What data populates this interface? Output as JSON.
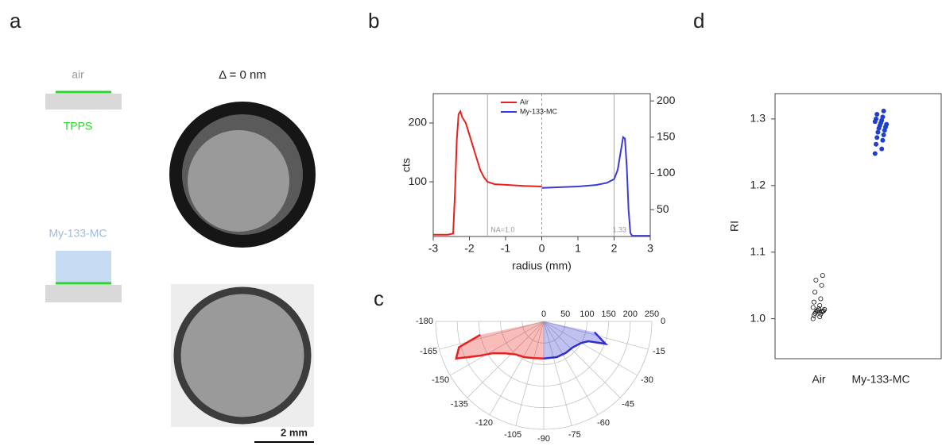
{
  "panel_labels": [
    "a",
    "b",
    "c",
    "d"
  ],
  "schematic": {
    "top_label": "air",
    "top_substrate": "TPPS",
    "bottom_label": "My-133-MC"
  },
  "image_title": "Δ = 0 nm",
  "scale_bar": "2 mm",
  "chart_data": [
    {
      "type": "line",
      "xlabel": "radius (mm)",
      "ylabel": "cts",
      "xlim": [
        -3,
        3
      ],
      "xticks": [
        -3,
        -2,
        -1,
        0,
        1,
        2,
        3
      ],
      "ylim": [
        7,
        250
      ],
      "yticks": [
        100,
        200
      ],
      "y2lim": [
        13,
        210
      ],
      "y2ticks": [
        50,
        100,
        150,
        200
      ],
      "series": [
        {
          "name": "Air",
          "color": "#e8201e",
          "x": [
            -3,
            -2.6,
            -2.45,
            -2.4,
            -2.35,
            -2.3,
            -2.25,
            -2.2,
            -2.1,
            -2.0,
            -1.9,
            -1.8,
            -1.7,
            -1.6,
            -1.5,
            -1.3,
            -1,
            -0.5,
            0
          ],
          "values": [
            10,
            10,
            12,
            80,
            170,
            215,
            220,
            210,
            200,
            180,
            160,
            140,
            120,
            108,
            100,
            96,
            95,
            93,
            92
          ]
        },
        {
          "name": "My-133-MC",
          "color": "#3a3ad8",
          "axis": "y2",
          "x": [
            0,
            0.5,
            1,
            1.5,
            1.8,
            2,
            2.1,
            2.2,
            2.25,
            2.3,
            2.35,
            2.4,
            2.45,
            2.5,
            3
          ],
          "values": [
            80,
            81,
            82,
            84,
            87,
            92,
            105,
            135,
            150,
            148,
            110,
            50,
            18,
            14,
            14
          ]
        }
      ],
      "reference_lines": [
        {
          "value": -1.5,
          "label": "NA=1.0"
        },
        {
          "value": 2,
          "label": "1.33"
        }
      ],
      "dashed_line": 0
    },
    {
      "type": "polar",
      "rlim": [
        0,
        250
      ],
      "rticks": [
        0,
        50,
        100,
        150,
        200,
        250
      ],
      "thetaticks": [
        0,
        -15,
        -30,
        -45,
        -60,
        -75,
        -90,
        -105,
        -120,
        -135,
        -150,
        -165,
        -180
      ],
      "series": [
        {
          "color": "#e8201e",
          "x": [
            -168,
            -163,
            -157,
            -152,
            -148,
            -140,
            -130,
            -118,
            -105,
            -90
          ],
          "values": [
            150,
            205,
            220,
            170,
            139,
            115,
            100,
            94,
            88,
            86
          ]
        },
        {
          "color": "#2f2fd0",
          "x": [
            -90,
            -70,
            -55,
            -42,
            -30,
            -24,
            -20,
            -12
          ],
          "values": [
            86,
            88,
            89,
            90,
            100,
            113,
            152,
            120
          ]
        }
      ]
    },
    {
      "type": "strip",
      "ylabel": "RI",
      "ylim": [
        0.94,
        1.338
      ],
      "yticks": [
        {
          "value": 1,
          "label": "1.0"
        },
        1.1,
        1.2,
        1.3
      ],
      "categories": [
        "Air",
        "My-133-MC"
      ],
      "groups": [
        {
          "color": "#111111",
          "values": [
            1.0,
            1.003,
            1.005,
            1.007,
            1.008,
            1.01,
            1.01,
            1.011,
            1.012,
            1.012,
            1.013,
            1.014,
            1.015,
            1.017,
            1.02,
            1.025,
            1.03,
            1.04,
            1.05,
            1.058,
            1.065
          ]
        },
        {
          "color": "#1f3fd0",
          "values": [
            1.248,
            1.255,
            1.262,
            1.268,
            1.272,
            1.276,
            1.28,
            1.283,
            1.286,
            1.288,
            1.29,
            1.292,
            1.294,
            1.296,
            1.298,
            1.3,
            1.303,
            1.307,
            1.312
          ]
        }
      ]
    }
  ]
}
